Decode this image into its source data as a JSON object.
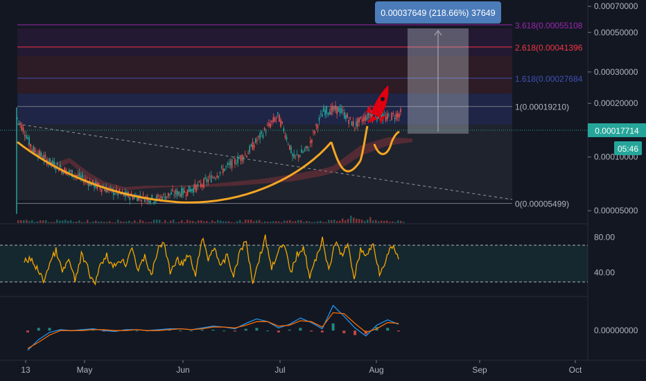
{
  "chart_data": [
    {
      "type": "line",
      "panel": "price",
      "title": "",
      "y_scale": "log",
      "ylim": [
        4.5e-05,
        0.00072
      ],
      "x_ticks": [
        "13",
        "May",
        "Jun",
        "Jul",
        "Aug",
        "Sep",
        "Oct"
      ],
      "y_ticks": [
        "0.00070000",
        "0.00050000",
        "0.00030000",
        "0.00020000",
        "0.00010000",
        "0.00005000"
      ],
      "last_price": "0.00017714",
      "countdown": "05:46",
      "measure_tooltip": "0.00037649 (218.66%) 37649",
      "fib_levels": [
        {
          "label": "3.618(0.00055108",
          "value": 0.00055108,
          "color": "#9c27b0"
        },
        {
          "label": "2.618(0.00041396",
          "value": 0.00041396,
          "color": "#f23645"
        },
        {
          "label": "1.618(0.00027684",
          "value": 0.00027684,
          "color": "#3f51b5"
        },
        {
          "label": "1(0.00019210)",
          "value": 0.0001921,
          "color": "#787b86"
        },
        {
          "label": "0(0.00005499)",
          "value": 5.499e-05,
          "color": "#787b86"
        }
      ],
      "series": [
        {
          "values": [
            0.000165,
            0.00011,
            9.5e-05,
            8.5e-05,
            7.8e-05,
            7e-05,
            6.5e-05,
            6.1e-05,
            6e-05,
            5.8e-05,
            6.2e-05,
            6.4e-05,
            7e-05,
            8e-05,
            9.2e-05,
            0.000105,
            0.000135,
            0.00017,
            9.8e-05,
            0.000112,
            0.000182,
            0.000185,
            0.00015,
            0.000175,
            0.000165,
            0.000176
          ]
        }
      ],
      "colors": {
        "candles": "#26a69a",
        "pattern": "#f5a623",
        "rocket": "#e0000f",
        "label_bg": "#26a69a",
        "tooltip_bg": "#4c7cba"
      }
    },
    {
      "type": "line",
      "panel": "rsi",
      "y_ticks": [
        "80.00",
        "40.00"
      ],
      "bands": [
        70,
        30
      ],
      "ylim": [
        15,
        90
      ],
      "series": [
        {
          "color": "#f7a600",
          "values": [
            52,
            55,
            45,
            30,
            50,
            65,
            40,
            55,
            30,
            60,
            45,
            25,
            50,
            60,
            45,
            55,
            50,
            70,
            40,
            60,
            35,
            65,
            75,
            40,
            55,
            50,
            60,
            35,
            80,
            55,
            70,
            45,
            60,
            35,
            65,
            75,
            30,
            55,
            80,
            45,
            65,
            70,
            40,
            60,
            70,
            35,
            55,
            80,
            40,
            75,
            60,
            70,
            35,
            65,
            60,
            72,
            40,
            55,
            70,
            55
          ]
        }
      ]
    },
    {
      "type": "line",
      "panel": "macd",
      "y_ticks": [
        "0.00000000"
      ],
      "ylim": [
        -3,
        3.5
      ],
      "series": [
        {
          "color": "#2196f3",
          "values": [
            -2.2,
            -1.0,
            -0.2,
            0.1,
            0.0,
            0.1,
            0.2,
            0.0,
            -0.1,
            0.1,
            0.1,
            0.0,
            0.1,
            0.2,
            0.2,
            0.1,
            0.3,
            0.5,
            0.4,
            0.2,
            0.8,
            1.3,
            1.0,
            0.3,
            0.7,
            1.4,
            0.9,
            0.2,
            2.8,
            1.6,
            0.3,
            -0.6,
            0.6,
            1.2,
            0.7
          ]
        },
        {
          "color": "#ff6d00",
          "values": [
            -2.0,
            -1.3,
            -0.5,
            0.0,
            0.0,
            0.0,
            0.1,
            0.1,
            0.0,
            0.0,
            0.1,
            0.0,
            0.0,
            0.1,
            0.2,
            0.1,
            0.2,
            0.4,
            0.4,
            0.3,
            0.6,
            1.0,
            1.0,
            0.5,
            0.6,
            1.1,
            1.0,
            0.4,
            2.0,
            1.9,
            0.8,
            -0.2,
            0.2,
            0.9,
            0.8
          ]
        }
      ]
    }
  ]
}
